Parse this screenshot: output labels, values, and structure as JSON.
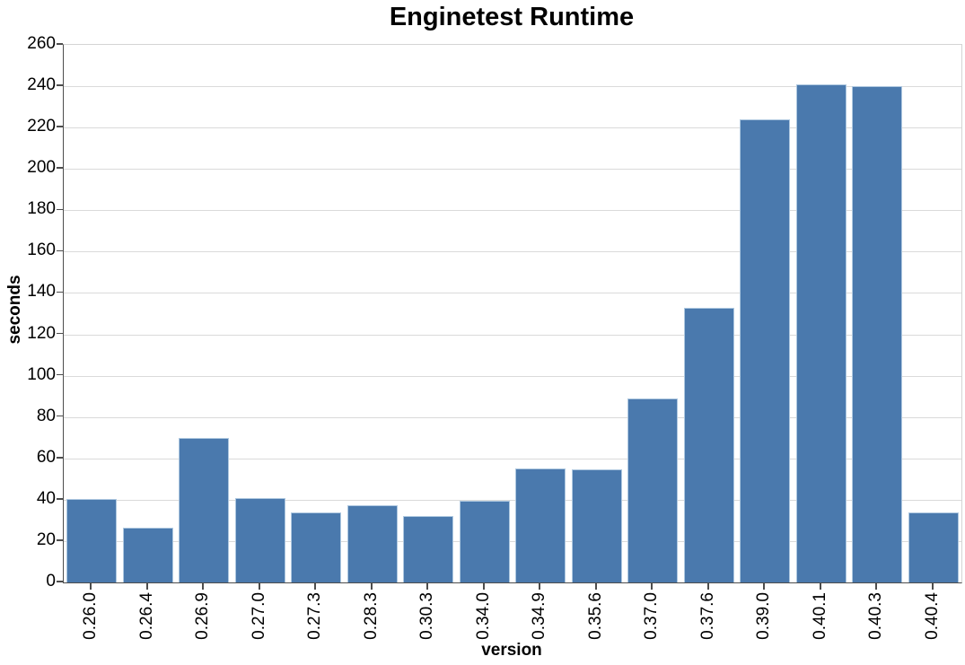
{
  "chart_data": {
    "type": "bar",
    "title": "Enginetest Runtime",
    "xlabel": "version",
    "ylabel": "seconds",
    "categories": [
      "0.26.0",
      "0.26.4",
      "0.26.9",
      "0.27.0",
      "0.27.3",
      "0.28.3",
      "0.30.3",
      "0.34.0",
      "0.34.9",
      "0.35.6",
      "0.37.0",
      "0.37.6",
      "0.39.0",
      "0.40.1",
      "0.40.3",
      "0.40.4"
    ],
    "values": [
      40.5,
      26.5,
      70,
      41,
      34,
      37.5,
      32,
      39.5,
      55,
      54.5,
      89,
      133,
      224,
      241,
      240,
      34
    ],
    "ylim": [
      0,
      260
    ],
    "ytick_step": 20,
    "yticks": [
      0,
      20,
      40,
      60,
      80,
      100,
      120,
      140,
      160,
      180,
      200,
      220,
      240,
      260
    ],
    "grid": "horizontal",
    "legend": "none",
    "colors": {
      "bar_fill": "#4a79ad",
      "bar_edge": "#aec8e0",
      "gridline": "#dadada",
      "axis_frame_light": "#d4d4d4",
      "axis_spine_dark": "#4d4d4d",
      "text": "#000000"
    }
  }
}
